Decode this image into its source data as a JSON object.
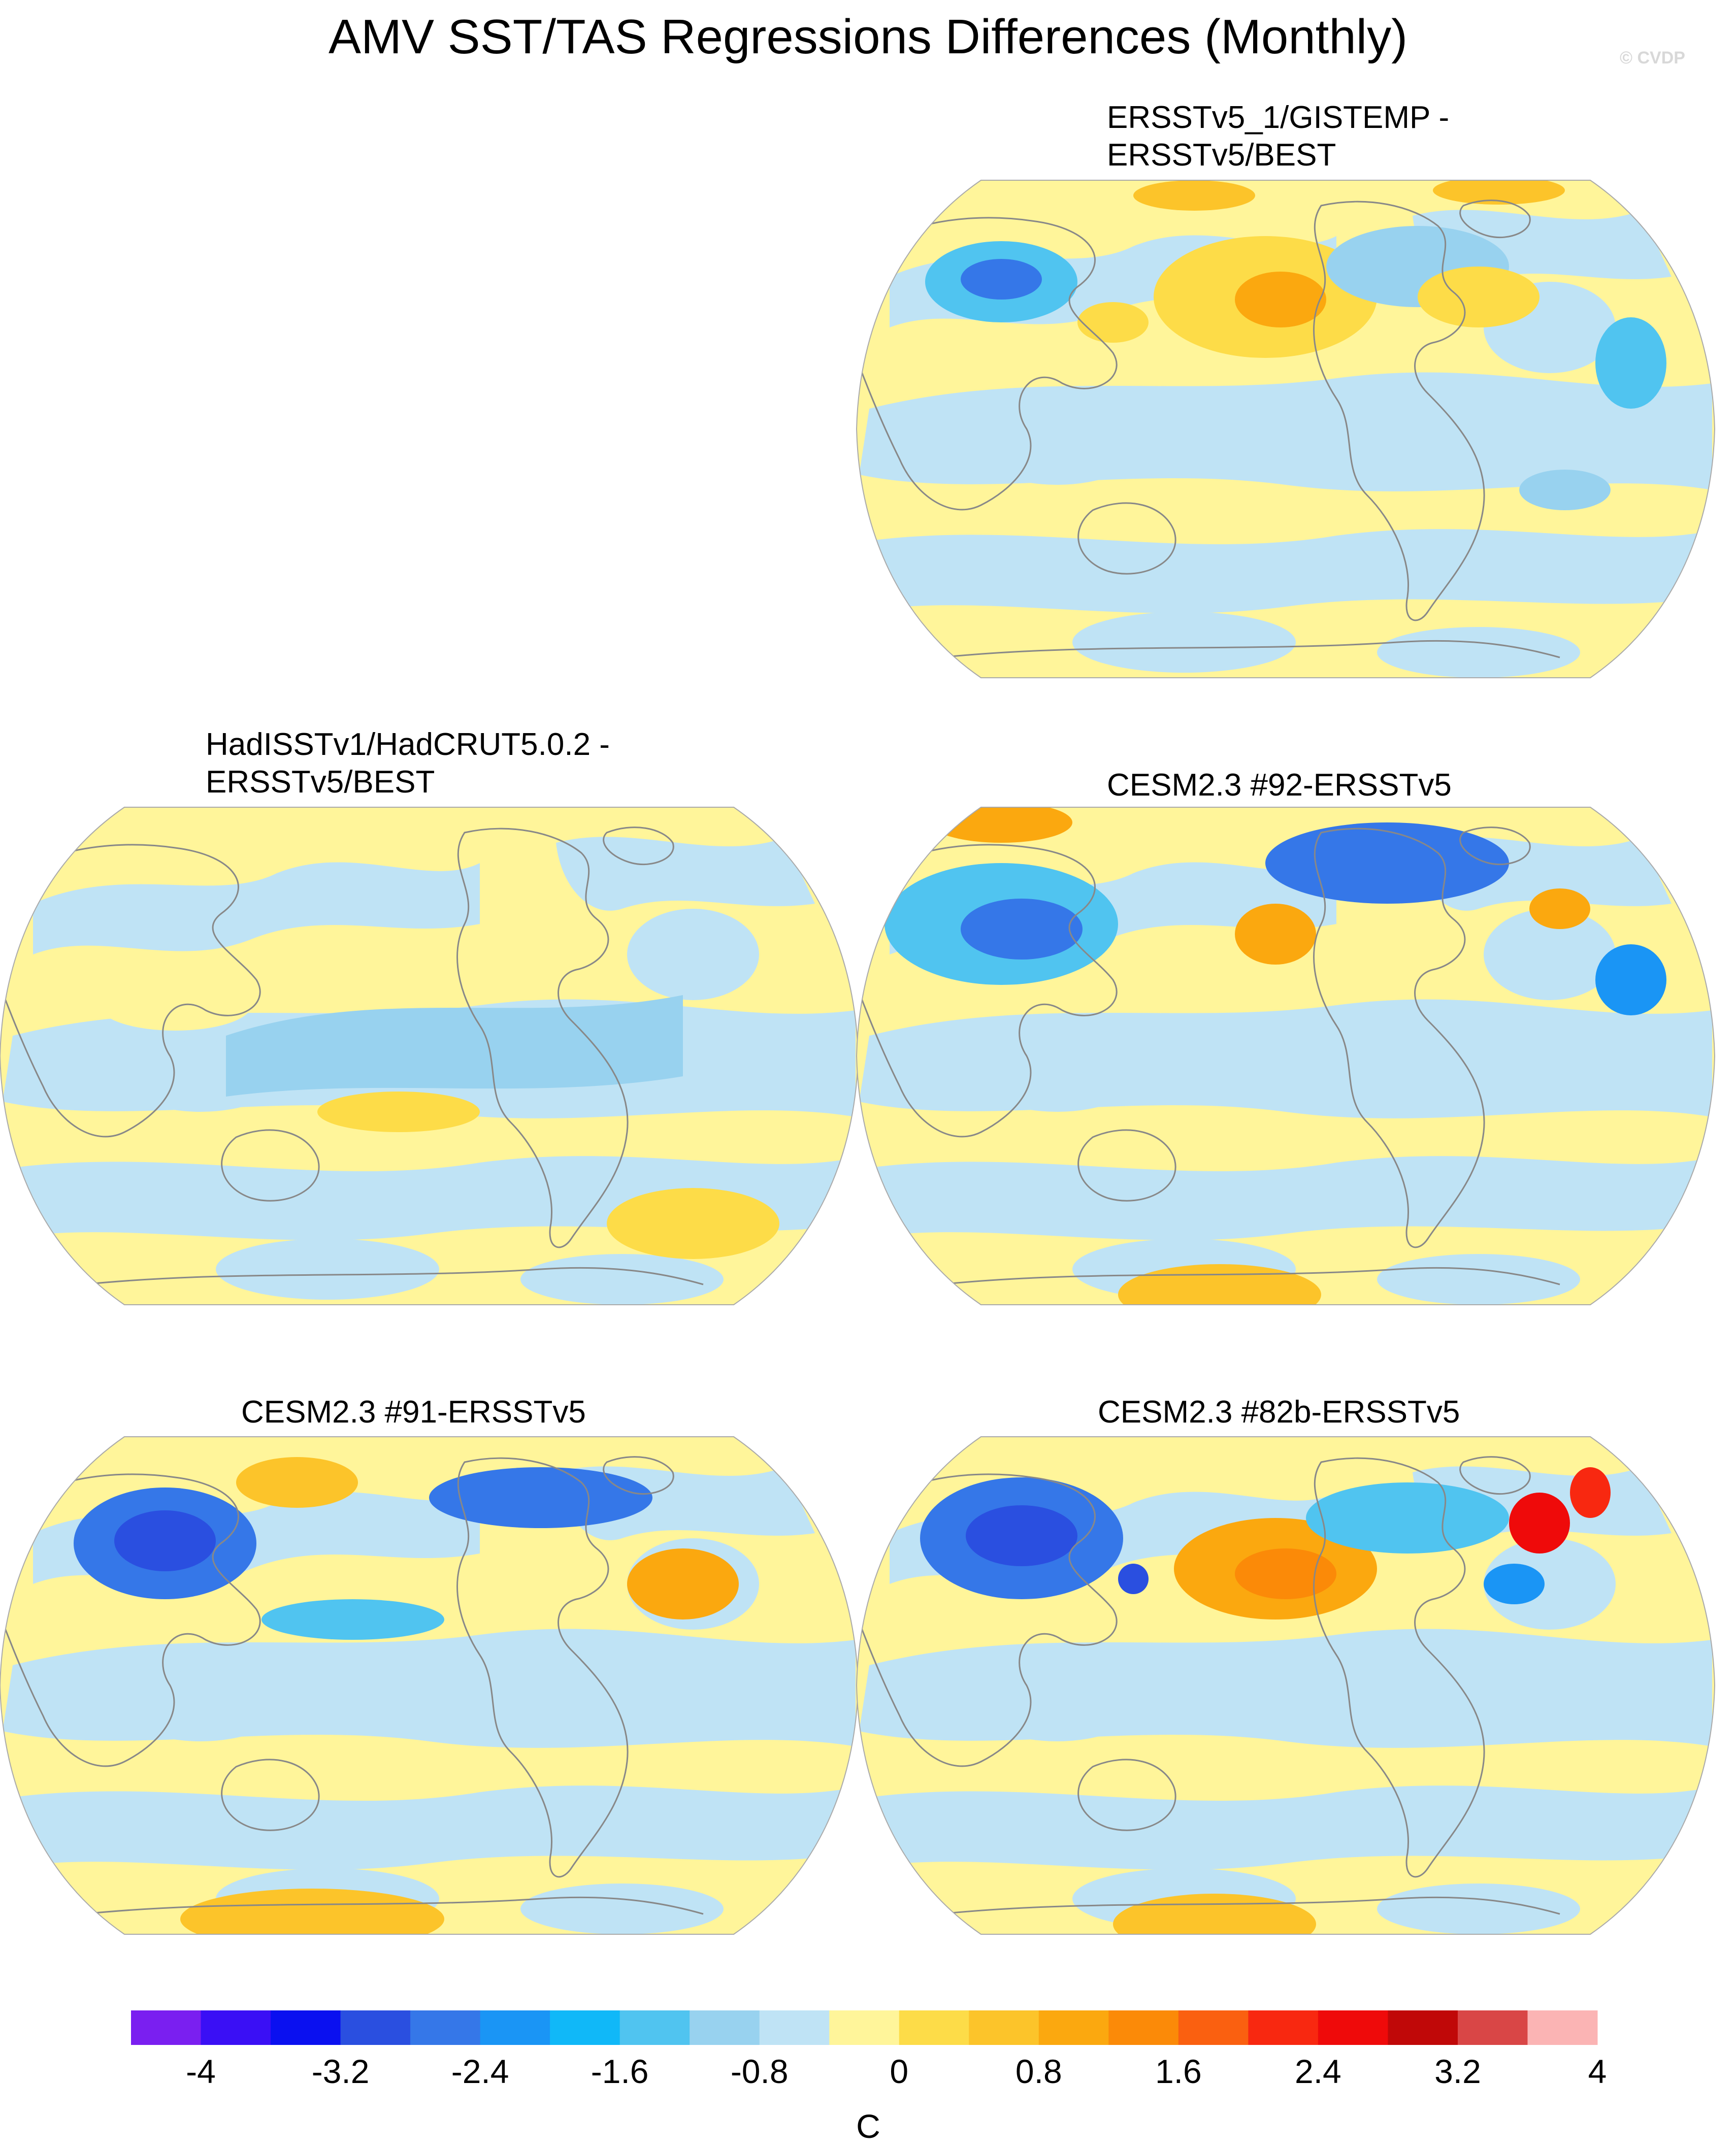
{
  "title": "AMV SST/TAS Regressions Differences (Monthly)",
  "watermark": "© CVDP",
  "panels": [
    {
      "id": "ersstv5-gistemp",
      "title": "ERSSTv5_1/GISTEMP -\nERSSTv5/BEST"
    },
    {
      "id": "hadisst-hadcrut",
      "title": "HadISSTv1/HadCRUT5.0.2 -\nERSSTv5/BEST"
    },
    {
      "id": "cesm-92",
      "title": "CESM2.3 #92-ERSSTv5"
    },
    {
      "id": "cesm-91",
      "title": "CESM2.3 #91-ERSSTv5"
    },
    {
      "id": "cesm-82b",
      "title": "CESM2.3 #82b-ERSSTv5"
    }
  ],
  "colorbar": {
    "unit": "C",
    "labels": [
      "-4",
      "-3.2",
      "-2.4",
      "-1.6",
      "-0.8",
      "0",
      "0.8",
      "1.6",
      "2.4",
      "3.2",
      "4"
    ],
    "colors": [
      "#7a1ff0",
      "#3a0ff5",
      "#0a10f0",
      "#2a4fe0",
      "#3577e8",
      "#1a95f5",
      "#10b8f8",
      "#50c4f0",
      "#98d2ef",
      "#bfe3f5",
      "#fff59a",
      "#fddc48",
      "#fcc42a",
      "#fba80f",
      "#fb8a08",
      "#fa6010",
      "#f82810",
      "#ef0a0a",
      "#c00808",
      "#d94646",
      "#fbb4b4"
    ]
  },
  "colors": {
    "ocean_neutral_warm": "#fff59a",
    "ocean_neutral_cool": "#bfe3f5",
    "land_mask": "#ffffff",
    "coastline": "#888888"
  }
}
